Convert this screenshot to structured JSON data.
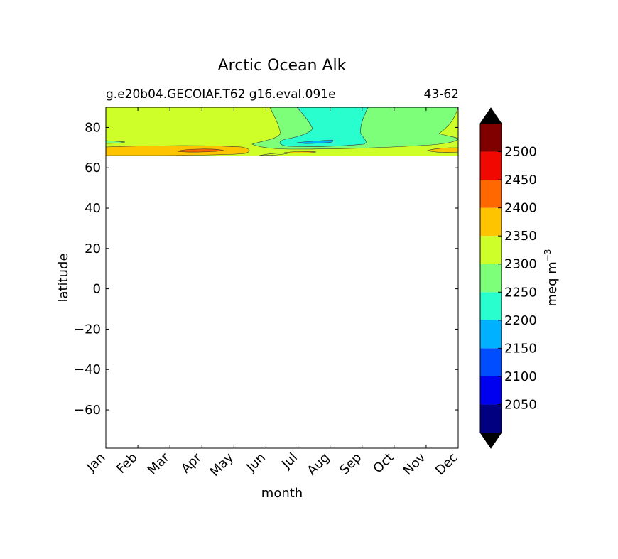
{
  "chart_data": {
    "type": "contour",
    "title": "Arctic Ocean Alk",
    "subtitle_left": "g.e20b04.GECOIAF.T62 g16.eval.091e",
    "subtitle_right": "43-62",
    "xlabel": "month",
    "ylabel": "latitude",
    "x_ticks": [
      "Jan",
      "Feb",
      "Mar",
      "Apr",
      "May",
      "Jun",
      "Jul",
      "Aug",
      "Sep",
      "Oct",
      "Nov",
      "Dec"
    ],
    "y_ticks": [
      80,
      60,
      40,
      20,
      0,
      -20,
      -40,
      -60
    ],
    "ylim": [
      -79,
      90
    ],
    "data_lat_range": [
      66,
      90
    ],
    "colorbar": {
      "label": "meq m",
      "label_exponent": "−3",
      "levels": [
        2000,
        2050,
        2100,
        2150,
        2200,
        2250,
        2300,
        2350,
        2400,
        2450,
        2500,
        2550
      ],
      "tick_labels": [
        "2050",
        "2100",
        "2150",
        "2200",
        "2250",
        "2300",
        "2350",
        "2400",
        "2450",
        "2500"
      ],
      "colors": [
        "#000080",
        "#0000f1",
        "#004dff",
        "#00b1ff",
        "#29ffce",
        "#7dff7a",
        "#ceff29",
        "#ffc400",
        "#ff6800",
        "#f10800",
        "#800000"
      ],
      "under_color": "#000000",
      "over_color": "#000000",
      "extend": "both"
    }
  }
}
